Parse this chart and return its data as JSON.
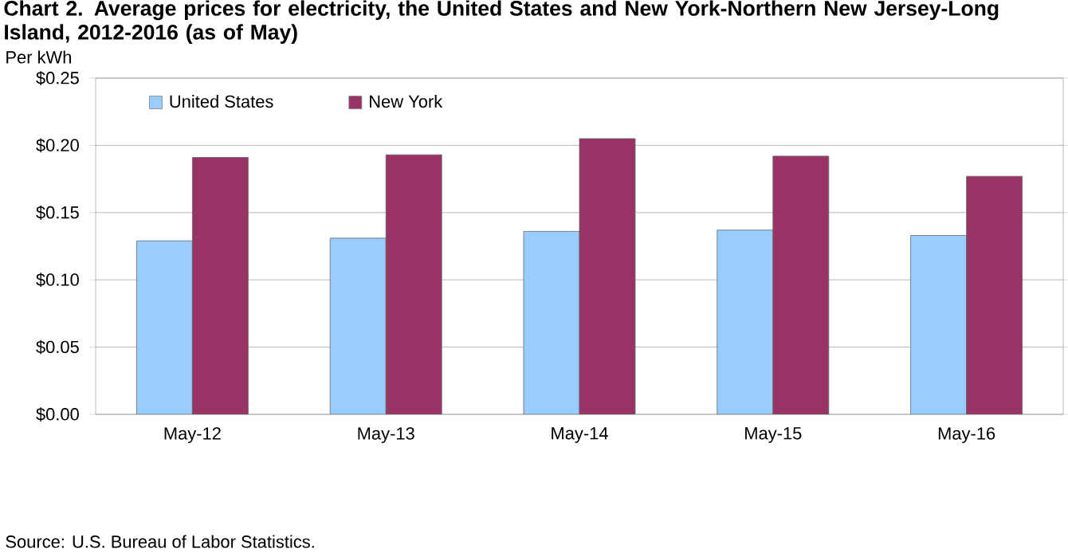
{
  "chart_data": {
    "type": "bar",
    "title": "Chart 2. Average prices for electricity, the United States and New York-Northern New Jersey-Long Island, 2012-2016 (as of May)",
    "ylabel": "Per kWh",
    "annotations": [
      "Source: U.S. Bureau of Labor Statistics."
    ],
    "categories": [
      "May-12",
      "May-13",
      "May-14",
      "May-15",
      "May-16"
    ],
    "series": [
      {
        "name": "United States",
        "color": "#99ccff",
        "values": [
          0.129,
          0.131,
          0.136,
          0.137,
          0.133
        ]
      },
      {
        "name": "New York",
        "color": "#993366",
        "values": [
          0.191,
          0.193,
          0.205,
          0.192,
          0.177
        ]
      }
    ],
    "ylim": [
      0,
      0.25
    ],
    "yticks": [
      {
        "value": 0,
        "label": "$0.00"
      },
      {
        "value": 0.05,
        "label": "$0.05"
      },
      {
        "value": 0.1,
        "label": "$0.10"
      },
      {
        "value": 0.15,
        "label": "$0.15"
      },
      {
        "value": 0.2,
        "label": "$0.20"
      },
      {
        "value": 0.25,
        "label": "$0.25"
      }
    ],
    "grid": "y",
    "legend": "top left"
  }
}
